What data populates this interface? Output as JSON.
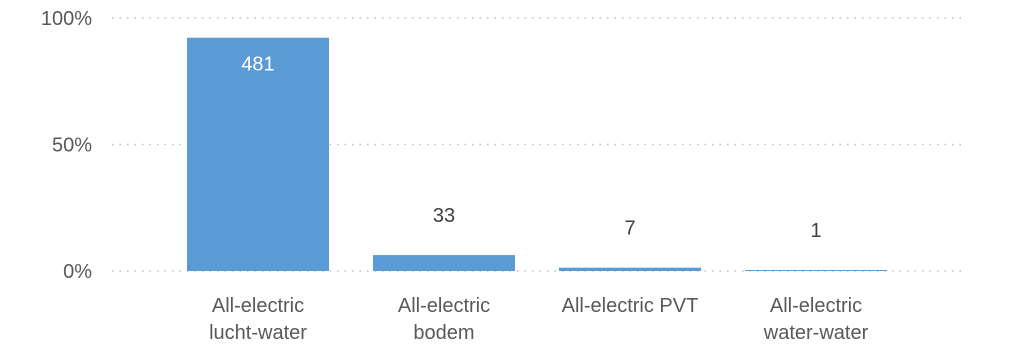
{
  "chart_data": {
    "type": "bar",
    "categories": [
      [
        "All-electric",
        "lucht-water"
      ],
      [
        "All-electric",
        "bodem"
      ],
      [
        "All-electric PVT"
      ],
      [
        "All-electric",
        "water-water"
      ]
    ],
    "values": [
      481,
      33,
      7,
      1
    ],
    "percent_values": [
      92.2,
      6.3,
      1.3,
      0.2
    ],
    "data_labels": [
      "481",
      "33",
      "7",
      "1"
    ],
    "ylim": [
      0,
      100
    ],
    "y_ticks": [
      0,
      50,
      100
    ],
    "y_tick_labels": [
      "0%",
      "50%",
      "100%"
    ],
    "grid": true,
    "legend": "none",
    "colors": {
      "bar": "#5b9bd5",
      "label_inside": "#ffffff",
      "label_outside": "#404040",
      "axis_text": "#595959",
      "grid": "#bfbfbf"
    }
  }
}
